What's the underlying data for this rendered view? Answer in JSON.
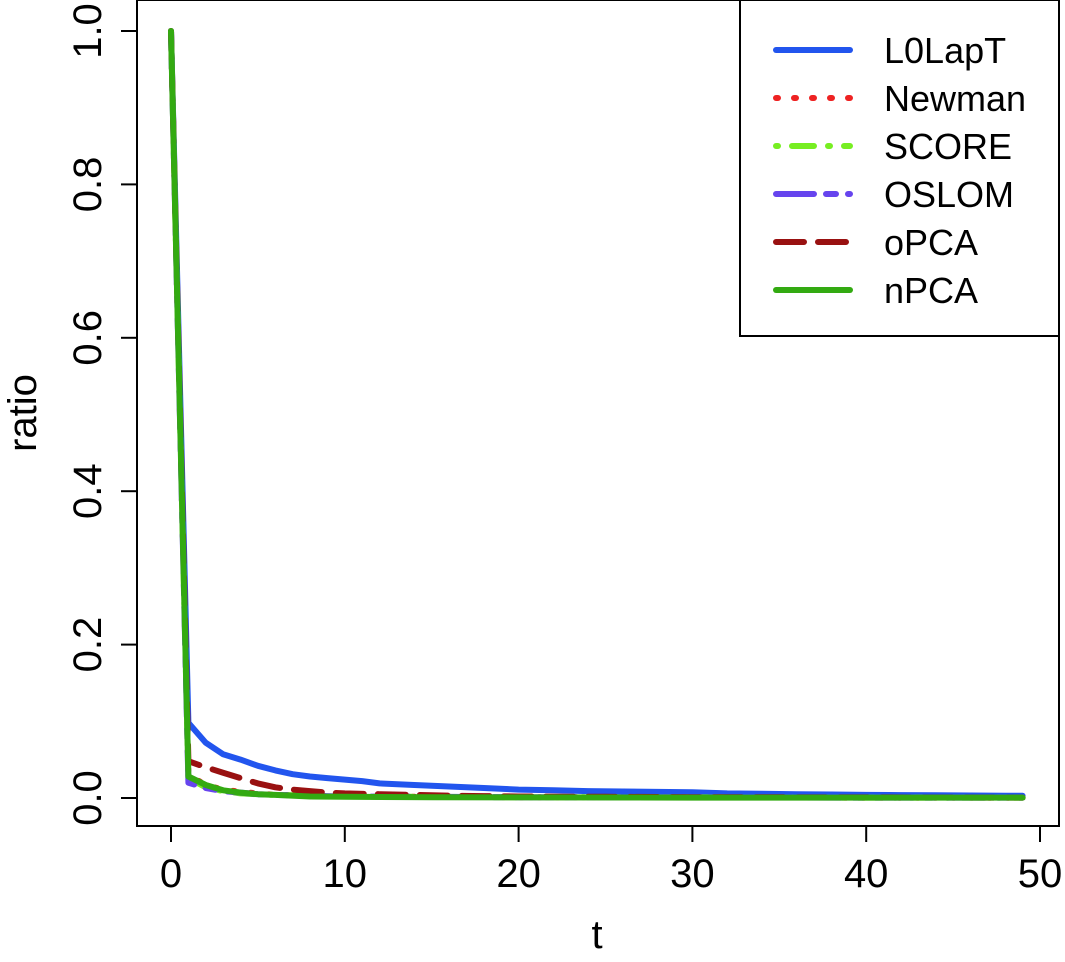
{
  "chart_data": {
    "type": "line",
    "title": "",
    "xlabel": "t",
    "ylabel": "ratio",
    "xlim": [
      0,
      50
    ],
    "ylim": [
      0,
      1
    ],
    "x_ticks": [
      0,
      10,
      20,
      30,
      40,
      50
    ],
    "y_ticks": [
      0,
      0.2,
      0.4,
      0.6,
      0.8,
      1
    ],
    "x_tick_labels": [
      "0",
      "10",
      "20",
      "30",
      "40",
      "50"
    ],
    "y_tick_labels": [
      "0.0",
      "0.2",
      "0.4",
      "0.6",
      "0.8",
      "1.0"
    ],
    "grid": false,
    "legend_position": "top-right",
    "series": [
      {
        "name": "L0LapT",
        "color": "#2255ee",
        "dash": "solid",
        "x": [
          0,
          1,
          2,
          3,
          4,
          5,
          6,
          7,
          8,
          9,
          10,
          11,
          12,
          14,
          16,
          18,
          20,
          22,
          24,
          26,
          28,
          30,
          32,
          34,
          36,
          38,
          40,
          42,
          44,
          46,
          48,
          49
        ],
        "y": [
          1.0,
          0.098,
          0.072,
          0.057,
          0.05,
          0.042,
          0.036,
          0.031,
          0.028,
          0.026,
          0.024,
          0.022,
          0.019,
          0.017,
          0.015,
          0.013,
          0.011,
          0.01,
          0.009,
          0.0085,
          0.008,
          0.0075,
          0.006,
          0.0055,
          0.005,
          0.0045,
          0.004,
          0.0038,
          0.0035,
          0.0032,
          0.003,
          0.003
        ]
      },
      {
        "name": "Newman",
        "color": "#ee2222",
        "dash": "dotted",
        "x": [
          0,
          1,
          2,
          3,
          4,
          5,
          6,
          8,
          10,
          15,
          20,
          30,
          40,
          49
        ],
        "y": [
          1.0,
          0.03,
          0.017,
          0.011,
          0.008,
          0.006,
          0.004,
          0.003,
          0.002,
          0.0015,
          0.001,
          0.0008,
          0.0005,
          0.0005
        ]
      },
      {
        "name": "SCORE",
        "color": "#77ee22",
        "dash": "dashdot",
        "x": [
          0,
          1,
          2,
          3,
          4,
          5,
          6,
          8,
          10,
          15,
          20,
          30,
          40,
          49
        ],
        "y": [
          1.0,
          0.026,
          0.014,
          0.009,
          0.006,
          0.005,
          0.004,
          0.003,
          0.002,
          0.0015,
          0.001,
          0.0008,
          0.0005,
          0.0005
        ]
      },
      {
        "name": "OSLOM",
        "color": "#6644ee",
        "dash": "longdash",
        "x": [
          0,
          1,
          2,
          3,
          4,
          5,
          6,
          8,
          10,
          15,
          20,
          30,
          40,
          49
        ],
        "y": [
          1.0,
          0.02,
          0.013,
          0.009,
          0.007,
          0.005,
          0.004,
          0.003,
          0.002,
          0.0015,
          0.001,
          0.0008,
          0.0005,
          0.0005
        ]
      },
      {
        "name": "oPCA",
        "color": "#991111",
        "dash": "dashed",
        "x": [
          0,
          1,
          2,
          3,
          4,
          5,
          6,
          7,
          8,
          9,
          10,
          12,
          14,
          16,
          18,
          20,
          25,
          30,
          40,
          49
        ],
        "y": [
          1.0,
          0.048,
          0.04,
          0.033,
          0.026,
          0.019,
          0.014,
          0.011,
          0.009,
          0.007,
          0.006,
          0.005,
          0.004,
          0.003,
          0.0025,
          0.002,
          0.0015,
          0.001,
          0.0008,
          0.0005
        ]
      },
      {
        "name": "nPCA",
        "color": "#33aa11",
        "dash": "solid",
        "x": [
          0,
          1,
          2,
          3,
          4,
          5,
          6,
          8,
          10,
          15,
          20,
          30,
          40,
          49
        ],
        "y": [
          1.0,
          0.028,
          0.017,
          0.01,
          0.007,
          0.005,
          0.004,
          0.002,
          0.0015,
          0.001,
          0.0008,
          0.0005,
          0.0005,
          0.0005
        ]
      }
    ]
  }
}
